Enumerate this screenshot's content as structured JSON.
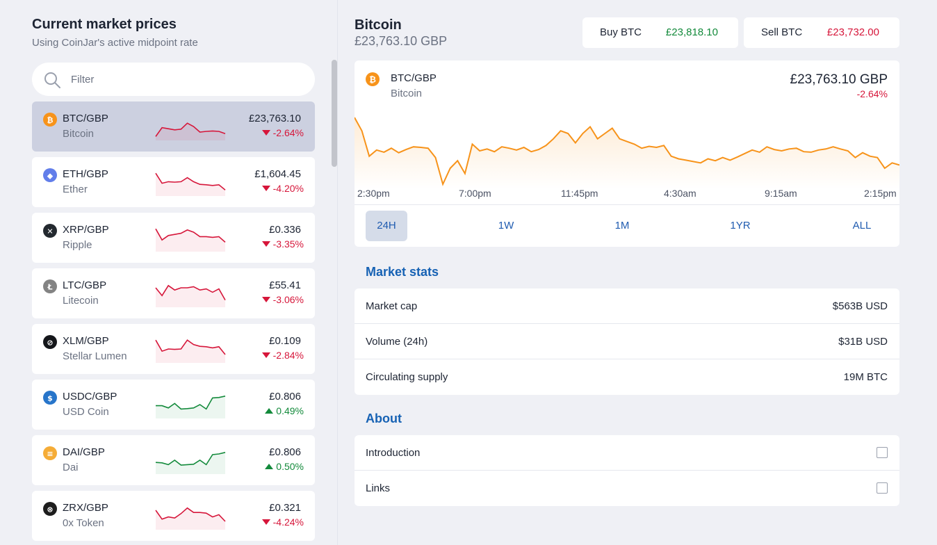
{
  "sidebar": {
    "title": "Current market prices",
    "subtitle": "Using CoinJar's active midpoint rate",
    "filter_placeholder": "Filter",
    "items": [
      {
        "pair": "BTC/GBP",
        "name": "Bitcoin",
        "price": "£23,763.10",
        "change": "-2.64%",
        "direction": "down",
        "icon": "bitcoin-icon",
        "color": "#f7931a",
        "spark": [
          0.95,
          0.55,
          0.6,
          0.65,
          0.62,
          0.35,
          0.5,
          0.75,
          0.72,
          0.7,
          0.72,
          0.82
        ]
      },
      {
        "pair": "ETH/GBP",
        "name": "Ether",
        "price": "£1,604.45",
        "change": "-4.20%",
        "direction": "down",
        "icon": "ethereum-icon",
        "color": "#627eea",
        "spark": [
          0.1,
          0.55,
          0.48,
          0.5,
          0.48,
          0.3,
          0.48,
          0.6,
          0.62,
          0.65,
          0.62,
          0.85
        ]
      },
      {
        "pair": "XRP/GBP",
        "name": "Ripple",
        "price": "£0.336",
        "change": "-3.35%",
        "direction": "down",
        "icon": "xrp-icon",
        "color": "#23292f",
        "spark": [
          0.1,
          0.6,
          0.4,
          0.35,
          0.3,
          0.15,
          0.25,
          0.45,
          0.45,
          0.48,
          0.45,
          0.7
        ]
      },
      {
        "pair": "LTC/GBP",
        "name": "Litecoin",
        "price": "£55.41",
        "change": "-3.06%",
        "direction": "down",
        "icon": "litecoin-icon",
        "color": "#838383",
        "spark": [
          0.25,
          0.6,
          0.15,
          0.35,
          0.25,
          0.25,
          0.2,
          0.35,
          0.3,
          0.45,
          0.3,
          0.8
        ]
      },
      {
        "pair": "XLM/GBP",
        "name": "Stellar Lumen",
        "price": "£0.109",
        "change": "-2.84%",
        "direction": "down",
        "icon": "stellar-icon",
        "color": "#14161a",
        "spark": [
          0.1,
          0.6,
          0.5,
          0.52,
          0.5,
          0.1,
          0.3,
          0.38,
          0.4,
          0.45,
          0.4,
          0.75
        ]
      },
      {
        "pair": "USDC/GBP",
        "name": "USD Coin",
        "price": "£0.806",
        "change": "0.49%",
        "direction": "up",
        "icon": "usdc-icon",
        "color": "#2775ca",
        "spark": [
          0.55,
          0.55,
          0.65,
          0.45,
          0.7,
          0.68,
          0.65,
          0.5,
          0.7,
          0.2,
          0.18,
          0.12
        ]
      },
      {
        "pair": "DAI/GBP",
        "name": "Dai",
        "price": "£0.806",
        "change": "0.50%",
        "direction": "up",
        "icon": "dai-icon",
        "color": "#f5ac37",
        "spark": [
          0.6,
          0.62,
          0.7,
          0.5,
          0.72,
          0.7,
          0.68,
          0.5,
          0.7,
          0.25,
          0.22,
          0.15
        ]
      },
      {
        "pair": "ZRX/GBP",
        "name": "0x Token",
        "price": "£0.321",
        "change": "-4.24%",
        "direction": "down",
        "icon": "zrx-icon",
        "color": "#1d1d1d",
        "spark": [
          0.25,
          0.65,
          0.55,
          0.6,
          0.4,
          0.15,
          0.35,
          0.35,
          0.38,
          0.55,
          0.45,
          0.75
        ]
      }
    ]
  },
  "asset": {
    "name": "Bitcoin",
    "price": "£23,763.10 GBP",
    "buy_label": "Buy BTC",
    "buy_value": "£23,818.10",
    "sell_label": "Sell BTC",
    "sell_value": "£23,732.00"
  },
  "chart": {
    "pair": "BTC/GBP",
    "name": "Bitcoin",
    "price": "£23,763.10 GBP",
    "change": "-2.64%",
    "line_color": "#f7931a",
    "x_labels": [
      "2:30pm",
      "7:00pm",
      "11:45pm",
      "4:30am",
      "9:15am",
      "2:15pm"
    ],
    "ranges": [
      "24H",
      "1W",
      "1M",
      "1YR",
      "ALL"
    ],
    "active_range": "24H"
  },
  "chart_data": {
    "type": "line",
    "series": [
      {
        "values": [
          23890,
          23840,
          23745,
          23768,
          23760,
          23775,
          23758,
          23770,
          23780,
          23778,
          23775,
          23740,
          23640,
          23700,
          23728,
          23680,
          23790,
          23765,
          23772,
          23762,
          23780,
          23775,
          23768,
          23778,
          23762,
          23770,
          23785,
          23810,
          23840,
          23830,
          23795,
          23830,
          23855,
          23810,
          23830,
          23850,
          23810,
          23800,
          23790,
          23775,
          23782,
          23778,
          23785,
          23745,
          23735,
          23730,
          23725,
          23720,
          23735,
          23728,
          23740,
          23730,
          23742,
          23755,
          23768,
          23760,
          23780,
          23770,
          23765,
          23772,
          23775,
          23762,
          23760,
          23768,
          23772,
          23780,
          23772,
          23765,
          23740,
          23758,
          23745,
          23740,
          23700,
          23720,
          23712
        ]
      }
    ]
  },
  "market_stats": {
    "title": "Market stats",
    "rows": [
      {
        "label": "Market cap",
        "value": "$563B USD"
      },
      {
        "label": "Volume (24h)",
        "value": "$31B USD"
      },
      {
        "label": "Circulating supply",
        "value": "19M BTC"
      }
    ]
  },
  "about": {
    "title": "About",
    "rows": [
      {
        "label": "Introduction"
      },
      {
        "label": "Links"
      }
    ]
  }
}
